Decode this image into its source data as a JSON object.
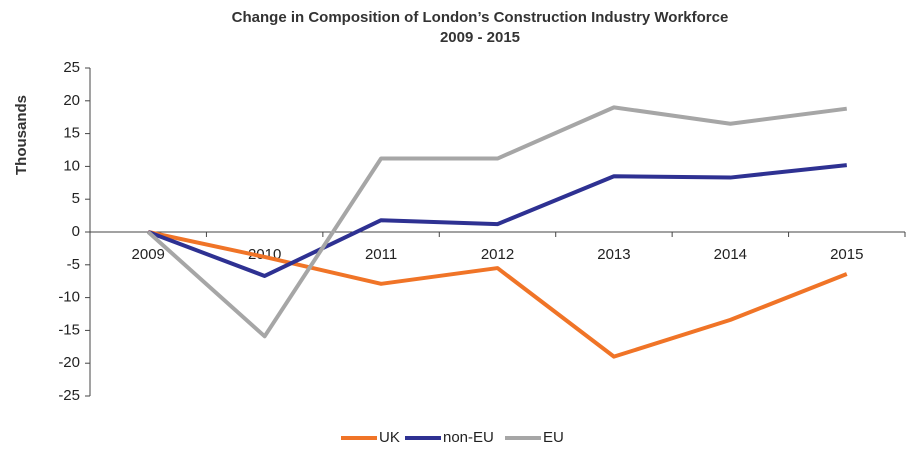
{
  "chart_data": {
    "type": "line",
    "title": "Change in Composition of London’s Construction Industry Workforce",
    "subtitle": "2009 - 2015",
    "y_label": "Thousands",
    "categories": [
      "2009",
      "2010",
      "2011",
      "2012",
      "2013",
      "2014",
      "2015"
    ],
    "series": [
      {
        "name": "UK",
        "color": "#f07427",
        "values": [
          0,
          -3.8,
          -7.9,
          -5.5,
          -19,
          -13.4,
          -6.4
        ]
      },
      {
        "name": "non-EU",
        "color": "#2e3192",
        "values": [
          0,
          -6.7,
          1.8,
          1.2,
          8.5,
          8.3,
          10.2
        ]
      },
      {
        "name": "EU",
        "color": "#a6a6a6",
        "values": [
          0,
          -15.9,
          11.2,
          11.2,
          19,
          16.5,
          18.8
        ]
      }
    ],
    "ylim": [
      -25,
      25
    ],
    "yticks": [
      -25,
      -20,
      -15,
      -10,
      -5,
      0,
      5,
      10,
      15,
      20,
      25
    ],
    "grid": false,
    "legend": "bottom"
  }
}
